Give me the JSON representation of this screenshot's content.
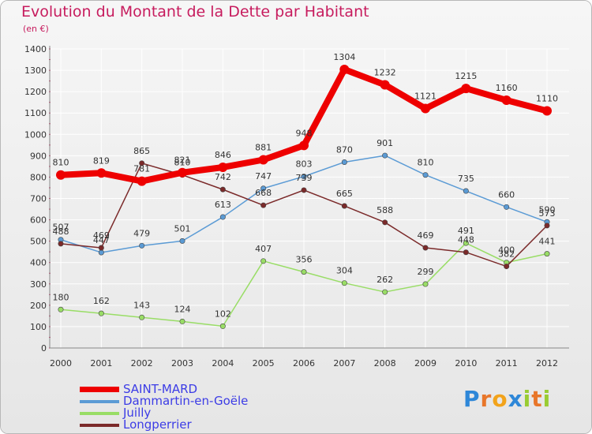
{
  "title": "Evolution du Montant de la Dette par Habitant",
  "unit_label": "(en €)",
  "chart_data": {
    "type": "line",
    "title": "Evolution du Montant de la Dette par Habitant",
    "ylabel": "(en €)",
    "xlabel": "",
    "x": [
      "2000",
      "2001",
      "2002",
      "2003",
      "2004",
      "2005",
      "2006",
      "2007",
      "2008",
      "2009",
      "2010",
      "2011",
      "2012"
    ],
    "ylim": [
      0,
      1400
    ],
    "yticks": [
      0,
      100,
      200,
      300,
      400,
      500,
      600,
      700,
      800,
      900,
      1000,
      1100,
      1200,
      1300,
      1400
    ],
    "grid": true,
    "legend_position": "bottom-left",
    "series": [
      {
        "name": "SAINT-MARD",
        "color": "#ee0000",
        "values": [
          810,
          819,
          781,
          821,
          846,
          881,
          948,
          1304,
          1232,
          1121,
          1215,
          1160,
          1110
        ]
      },
      {
        "name": "Dammartin-en-Goële",
        "color": "#5b9bd5",
        "values": [
          507,
          447,
          479,
          501,
          613,
          747,
          803,
          870,
          901,
          810,
          735,
          660,
          590
        ]
      },
      {
        "name": "Juilly",
        "color": "#99dd66",
        "values": [
          180,
          162,
          143,
          124,
          102,
          407,
          356,
          304,
          262,
          299,
          491,
          400,
          441
        ]
      },
      {
        "name": "Longperrier",
        "color": "#7b2a2a",
        "values": [
          488,
          469,
          865,
          810,
          742,
          668,
          739,
          665,
          588,
          469,
          448,
          382,
          573
        ]
      }
    ]
  },
  "logo": {
    "letters": [
      "P",
      "r",
      "o",
      "x",
      "i",
      "t",
      "i"
    ],
    "colors": [
      "#2e87d8",
      "#e8762a",
      "#f2a31b",
      "#2e87d8",
      "#99cc33",
      "#e8762a",
      "#99cc33"
    ]
  }
}
